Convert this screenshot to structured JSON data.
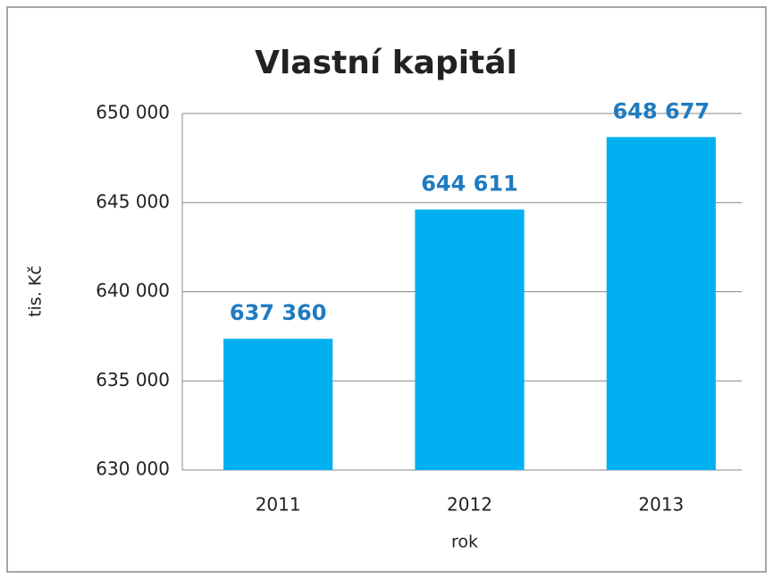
{
  "chart_data": {
    "type": "bar",
    "title": "Vlastní kapitál",
    "x_label": "rok",
    "y_label": "tis. Kč",
    "categories": [
      "2011",
      "2012",
      "2013"
    ],
    "values": [
      637360,
      644611,
      648677
    ],
    "value_labels": [
      "637 360",
      "644 611",
      "648 677"
    ],
    "color": "#00b0f0",
    "label_color": "#1f7bc0",
    "ylim": [
      630000,
      650000
    ],
    "yticks": [
      {
        "value": 630000,
        "label": "630 000"
      },
      {
        "value": 635000,
        "label": "635 000"
      },
      {
        "value": 640000,
        "label": "640 000"
      },
      {
        "value": 645000,
        "label": "645 000"
      },
      {
        "value": 650000,
        "label": "650 000"
      }
    ],
    "grid": true
  }
}
